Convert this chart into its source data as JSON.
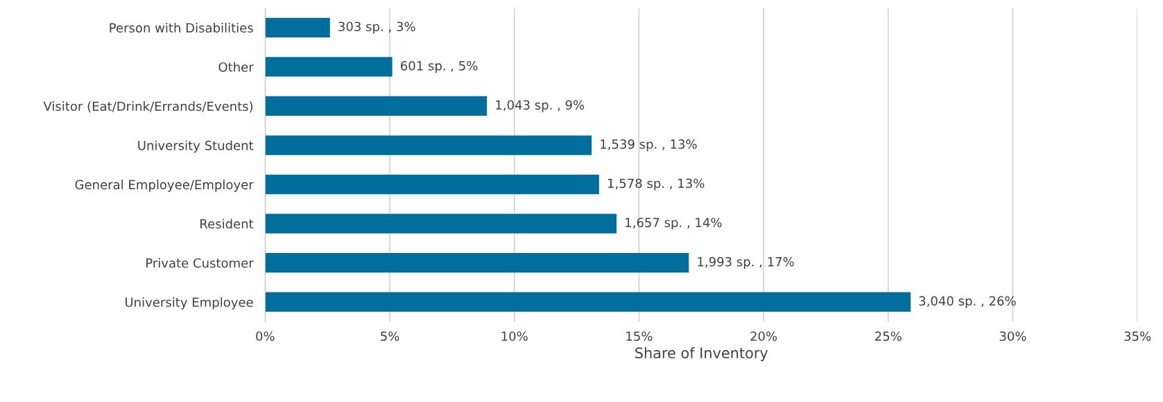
{
  "chart_data": {
    "type": "bar",
    "orientation": "horizontal",
    "xlabel": "Share of Inventory",
    "categories": [
      "Person with Disabilities",
      "Other",
      "Visitor (Eat/Drink/Errands/Events)",
      "University Student",
      "General Employee/Employer",
      "Resident",
      "Private Customer",
      "University Employee"
    ],
    "values": [
      2.6,
      5.1,
      8.9,
      13.1,
      13.4,
      14.1,
      17.0,
      25.9
    ],
    "value_labels": [
      "303 sp. , 3%",
      "601 sp. , 5%",
      "1,043 sp. , 9%",
      "1,539 sp. , 13%",
      "1,578 sp. , 13%",
      "1,657 sp. , 14%",
      "1,993 sp. , 17%",
      "3,040 sp. , 26%"
    ],
    "color": "#026e9e",
    "xlim": [
      0,
      35
    ],
    "xticks": [
      {
        "value": 0,
        "label": "0%"
      },
      {
        "value": 5,
        "label": "5%"
      },
      {
        "value": 10,
        "label": "10%"
      },
      {
        "value": 15,
        "label": "15%"
      },
      {
        "value": 20,
        "label": "20%"
      },
      {
        "value": 25,
        "label": "25%"
      },
      {
        "value": 30,
        "label": "30%"
      },
      {
        "value": 35,
        "label": "35%"
      }
    ],
    "grid": "x",
    "legend": false
  }
}
